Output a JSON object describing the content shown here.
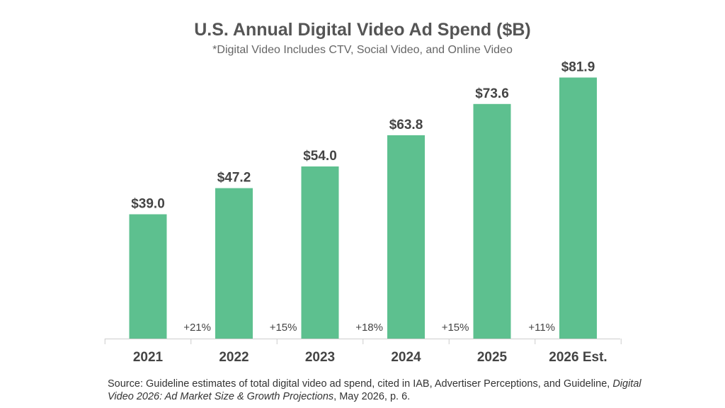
{
  "colors": {
    "bar": "#5dc08f",
    "axis": "#cccccc",
    "text": "#444444"
  },
  "chart_data": {
    "type": "bar",
    "title": "U.S. Annual Digital Video Ad Spend ($B)",
    "subtitle": "*Digital Video Includes CTV, Social Video, and Online Video",
    "categories": [
      "2021",
      "2022",
      "2023",
      "2024",
      "2025",
      "2026 Est."
    ],
    "values": [
      39.0,
      47.2,
      54.0,
      63.8,
      73.6,
      81.9
    ],
    "value_labels": [
      "$39.0",
      "$47.2",
      "$54.0",
      "$63.8",
      "$73.6",
      "$81.9"
    ],
    "growth_labels": [
      "",
      "+21%",
      "+15%",
      "+18%",
      "+15%",
      "+11%"
    ],
    "ylim": [
      0,
      100
    ],
    "grid": false,
    "legend": "none"
  },
  "source": {
    "prefix": "Source: Guideline estimates of total digital video ad spend, cited in IAB, Advertiser Perceptions, and Guideline, ",
    "report": "Digital Video 2026: Ad Market Size & Growth Projections",
    "suffix": ", May 2026, p. 6."
  }
}
